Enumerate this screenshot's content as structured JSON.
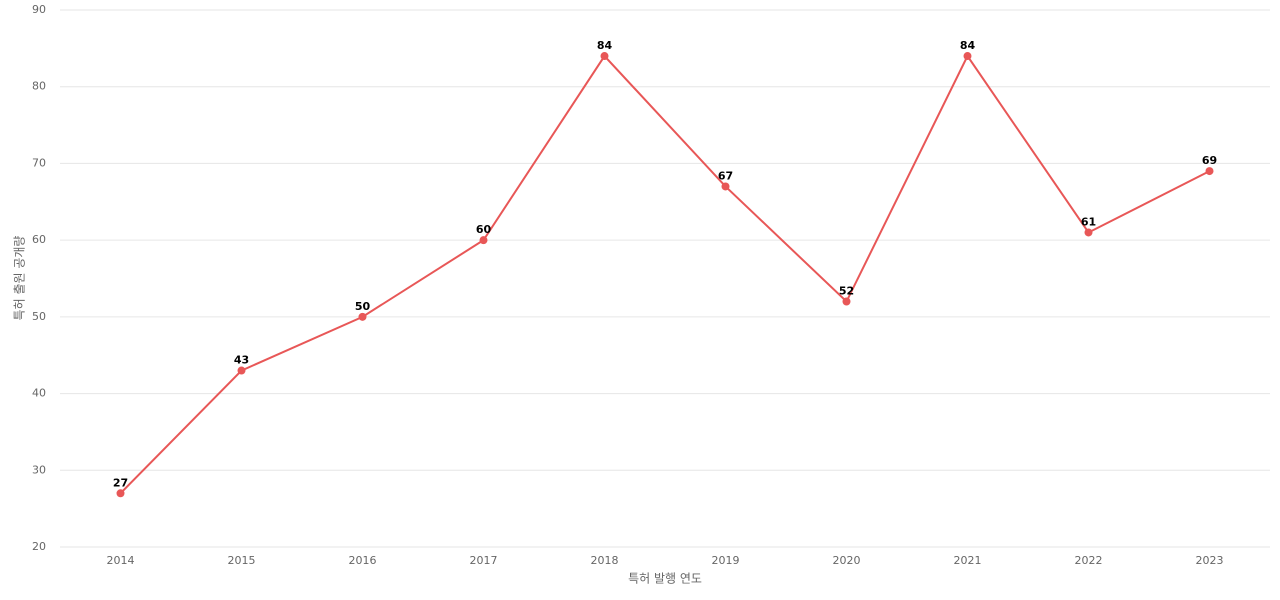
{
  "chart_data": {
    "type": "line",
    "x_label": "특허 발행 연도",
    "y_label": "특허 출원 공개량",
    "categories": [
      "2014",
      "2015",
      "2016",
      "2017",
      "2018",
      "2019",
      "2020",
      "2021",
      "2022",
      "2023"
    ],
    "series": [
      {
        "color": "#e85757",
        "values": [
          27,
          43,
          50,
          60,
          84,
          67,
          52,
          84,
          61,
          69
        ]
      }
    ],
    "ylim": [
      20,
      90
    ],
    "yticks": [
      20,
      30,
      40,
      50,
      60,
      70,
      80,
      90
    ],
    "grid": true
  }
}
